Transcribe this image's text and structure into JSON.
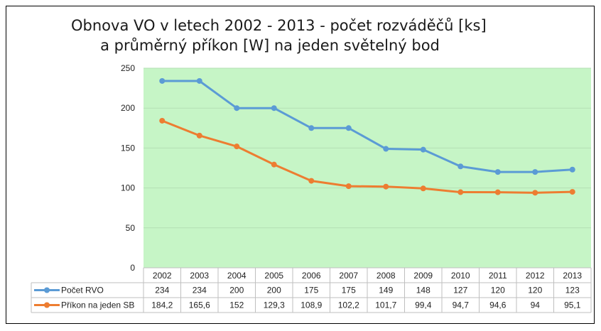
{
  "chart_data": {
    "type": "line",
    "title_line1": "Obnova VO v letech 2002 - 2013 - počet rozváděčů [ks]",
    "title_line2": "a průměrný příkon [W] na jeden světelný bod",
    "categories": [
      "2002",
      "2003",
      "2004",
      "2005",
      "2006",
      "2007",
      "2008",
      "2009",
      "2010",
      "2011",
      "2012",
      "2013"
    ],
    "ylim": [
      0,
      250
    ],
    "yticks": [
      0,
      50,
      100,
      150,
      200,
      250
    ],
    "grid": true,
    "plot_background": "#c6f5c6",
    "series": [
      {
        "name": "Počet RVO",
        "color": "#5b9bd5",
        "values": [
          234,
          234,
          200,
          200,
          175,
          175,
          149,
          148,
          127,
          120,
          120,
          123
        ],
        "labels": [
          "234",
          "234",
          "200",
          "200",
          "175",
          "175",
          "149",
          "148",
          "127",
          "120",
          "120",
          "123"
        ]
      },
      {
        "name": "Příkon na jeden SB",
        "color": "#ed7d31",
        "values": [
          184.2,
          165.6,
          152,
          129.3,
          108.9,
          102.2,
          101.7,
          99.4,
          94.7,
          94.6,
          94,
          95.1
        ],
        "labels": [
          "184,2",
          "165,6",
          "152",
          "129,3",
          "108,9",
          "102,2",
          "101,7",
          "99,4",
          "94,7",
          "94,6",
          "94",
          "95,1"
        ]
      }
    ]
  }
}
